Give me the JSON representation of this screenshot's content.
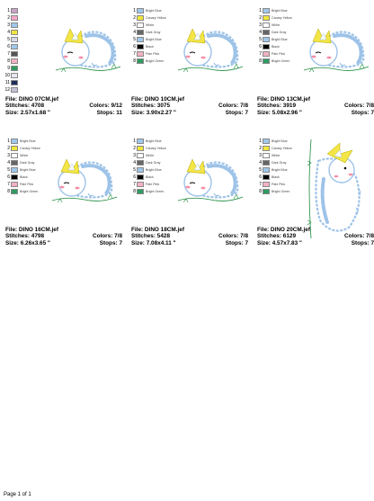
{
  "footer": "Page 1 of 1",
  "labels": {
    "file": "File:",
    "stitches": "Stitches:",
    "size": "Size:",
    "colors": "Colors:",
    "stops": "Stops:"
  },
  "colors": {
    "outline": "#1a8a3a",
    "blue": "#9ec3e8",
    "yellow": "#f3e545",
    "pink": "#f58fa8"
  },
  "designs": [
    {
      "file": "DINO 07CM.jef",
      "stitches": "4708",
      "size": "2.57x1.68 \"",
      "colors": "9/12",
      "stops": "11",
      "palette": [
        {
          "num": "1",
          "color": "#c9a2c8",
          "name": ""
        },
        {
          "num": "2",
          "color": "#f6a6c8",
          "name": ""
        },
        {
          "num": "3",
          "color": "#9fc8eb",
          "name": ""
        },
        {
          "num": "4",
          "color": "#f0e63c",
          "name": ""
        },
        {
          "num": "5",
          "color": "#d8d8e8",
          "name": ""
        },
        {
          "num": "6",
          "color": "#9fc8eb",
          "name": ""
        },
        {
          "num": "7",
          "color": "#555555",
          "name": ""
        },
        {
          "num": "8",
          "color": "#f4b1c3",
          "name": ""
        },
        {
          "num": "9",
          "color": "#2e9b60",
          "name": ""
        },
        {
          "num": "10",
          "color": "#e7e7f2",
          "name": ""
        },
        {
          "num": "11",
          "color": "#1d2c5a",
          "name": ""
        },
        {
          "num": "12",
          "color": "#c2c2d6",
          "name": ""
        }
      ]
    },
    {
      "file": "DINO 10CM.jef",
      "stitches": "3075",
      "size": "3.90x2.27 \"",
      "colors": "7/8",
      "stops": "7",
      "palette": [
        {
          "num": "1",
          "color": "#9fc8eb",
          "name": "Bright Blue"
        },
        {
          "num": "2",
          "color": "#f0e63c",
          "name": "Canary Yellow"
        },
        {
          "num": "3",
          "color": "#ffffff",
          "name": "White"
        },
        {
          "num": "4",
          "color": "#666666",
          "name": "Dark Gray"
        },
        {
          "num": "5",
          "color": "#9fc8eb",
          "name": "Bright Blue"
        },
        {
          "num": "6",
          "color": "#000000",
          "name": "Black"
        },
        {
          "num": "7",
          "color": "#f4b1c3",
          "name": "Pale Pink"
        },
        {
          "num": "8",
          "color": "#2e9b60",
          "name": "Bright Green"
        }
      ]
    },
    {
      "file": "DINO 13CM.jef",
      "stitches": "3919",
      "size": "5.08x2.96 \"",
      "colors": "7/8",
      "stops": "7",
      "palette": [
        {
          "num": "1",
          "color": "#9fc8eb",
          "name": "Bright Blue"
        },
        {
          "num": "2",
          "color": "#f0e63c",
          "name": "Canary Yellow"
        },
        {
          "num": "3",
          "color": "#ffffff",
          "name": "White"
        },
        {
          "num": "4",
          "color": "#666666",
          "name": "Dark Gray"
        },
        {
          "num": "5",
          "color": "#9fc8eb",
          "name": "Bright Blue"
        },
        {
          "num": "6",
          "color": "#000000",
          "name": "Black"
        },
        {
          "num": "7",
          "color": "#f4b1c3",
          "name": "Pale Pink"
        },
        {
          "num": "8",
          "color": "#2e9b60",
          "name": "Bright Green"
        }
      ]
    },
    {
      "file": "DINO 16CM.jef",
      "stitches": "4798",
      "size": "6.26x3.65 \"",
      "colors": "7/8",
      "stops": "7",
      "palette": [
        {
          "num": "1",
          "color": "#9fc8eb",
          "name": "Bright Blue"
        },
        {
          "num": "2",
          "color": "#f0e63c",
          "name": "Canary Yellow"
        },
        {
          "num": "3",
          "color": "#ffffff",
          "name": "White"
        },
        {
          "num": "4",
          "color": "#666666",
          "name": "Dark Gray"
        },
        {
          "num": "5",
          "color": "#9fc8eb",
          "name": "Bright Blue"
        },
        {
          "num": "6",
          "color": "#000000",
          "name": "Black"
        },
        {
          "num": "7",
          "color": "#f4b1c3",
          "name": "Pale Pink"
        },
        {
          "num": "8",
          "color": "#2e9b60",
          "name": "Bright Green"
        }
      ]
    },
    {
      "file": "DINO 18CM.jef",
      "stitches": "5428",
      "size": "7.08x4.11 \"",
      "colors": "7/8",
      "stops": "7",
      "palette": [
        {
          "num": "1",
          "color": "#9fc8eb",
          "name": "Bright Blue"
        },
        {
          "num": "2",
          "color": "#f0e63c",
          "name": "Canary Yellow"
        },
        {
          "num": "3",
          "color": "#ffffff",
          "name": "White"
        },
        {
          "num": "4",
          "color": "#666666",
          "name": "Dark Gray"
        },
        {
          "num": "5",
          "color": "#9fc8eb",
          "name": "Bright Blue"
        },
        {
          "num": "6",
          "color": "#000000",
          "name": "Black"
        },
        {
          "num": "7",
          "color": "#f4b1c3",
          "name": "Pale Pink"
        },
        {
          "num": "8",
          "color": "#2e9b60",
          "name": "Bright Green"
        }
      ]
    },
    {
      "file": "DINO 20CM.jef",
      "stitches": "6129",
      "size": "4.57x7.83 \"",
      "colors": "7/8",
      "stops": "7",
      "palette": [
        {
          "num": "1",
          "color": "#9fc8eb",
          "name": "Bright Blue"
        },
        {
          "num": "2",
          "color": "#f0e63c",
          "name": "Canary Yellow"
        },
        {
          "num": "3",
          "color": "#ffffff",
          "name": "White"
        },
        {
          "num": "4",
          "color": "#666666",
          "name": "Dark Gray"
        },
        {
          "num": "5",
          "color": "#9fc8eb",
          "name": "Bright Blue"
        },
        {
          "num": "6",
          "color": "#000000",
          "name": "Black"
        },
        {
          "num": "7",
          "color": "#f4b1c3",
          "name": "Pale Pink"
        },
        {
          "num": "8",
          "color": "#2e9b60",
          "name": "Bright Green"
        }
      ]
    }
  ]
}
